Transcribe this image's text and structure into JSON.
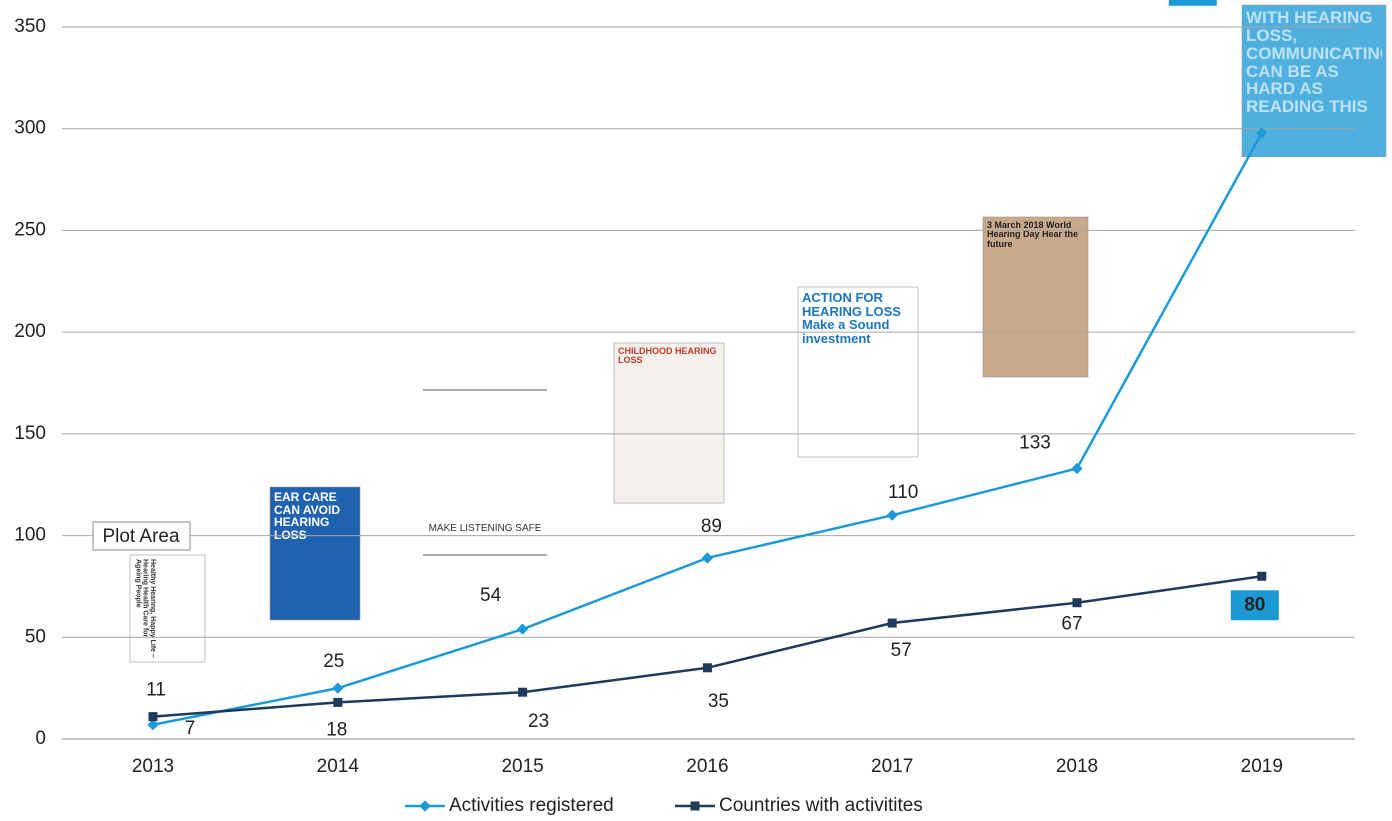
{
  "chart_data": {
    "type": "line",
    "categories": [
      "2013",
      "2014",
      "2015",
      "2016",
      "2017",
      "2018",
      "2019"
    ],
    "series": [
      {
        "name": "Activities registered",
        "color": "#1b9ad6",
        "marker": "diamond",
        "values": [
          7,
          25,
          54,
          89,
          110,
          133,
          298
        ]
      },
      {
        "name": "Countries with activitites",
        "color": "#1f3a5a",
        "marker": "square",
        "values": [
          11,
          18,
          23,
          35,
          57,
          67,
          80
        ]
      }
    ],
    "ylim": [
      0,
      350
    ],
    "yticks": [
      0,
      50,
      100,
      150,
      200,
      250,
      300,
      350
    ],
    "grid": true,
    "legend": "bottom",
    "annotation": "Plot Area",
    "posters": [
      {
        "text": "Healthy Hearing, Happy Life – Hearing Health Care for Ageing People"
      },
      {
        "text": "EAR CARE CAN AVOID HEARING LOSS"
      },
      {
        "text": "MAKE LISTENING SAFE"
      },
      {
        "text": "CHILDHOOD HEARING LOSS"
      },
      {
        "text": "ACTION FOR HEARING LOSS Make a Sound investment"
      },
      {
        "text": "3 March 2018 World Hearing Day Hear the future"
      },
      {
        "text": "WITH HEARING LOSS, COMMUNICATING CAN BE AS HARD AS READING THIS"
      }
    ]
  }
}
